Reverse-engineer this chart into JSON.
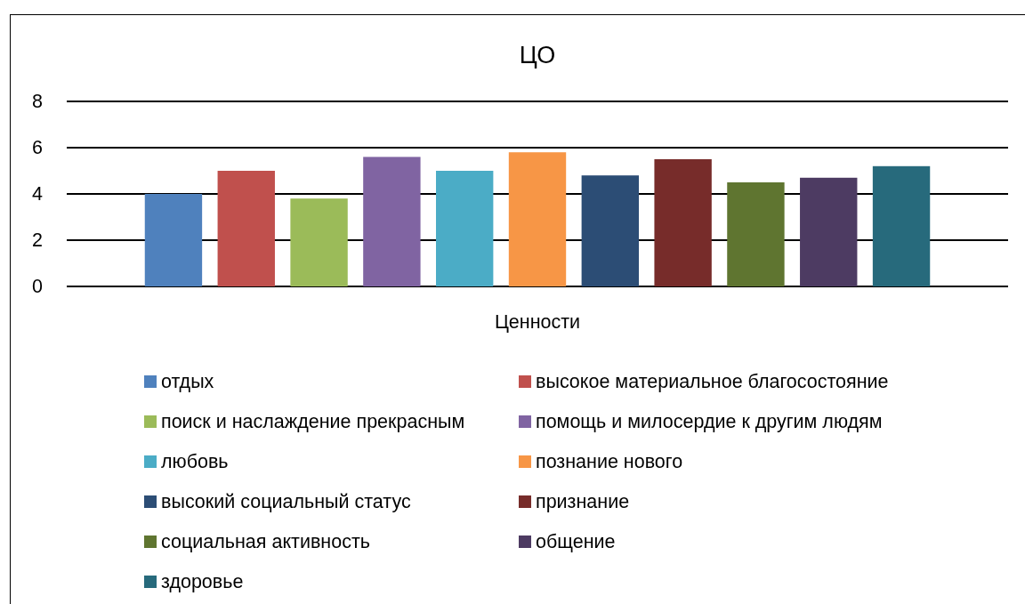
{
  "chart_data": {
    "type": "bar",
    "title": "ЦО",
    "categories": [
      "Ценности"
    ],
    "series": [
      {
        "name": "отдых",
        "color": "#4f81bd",
        "values": [
          4.0
        ]
      },
      {
        "name": "высокое материальное благосостояние",
        "color": "#c0504d",
        "values": [
          5.0
        ]
      },
      {
        "name": "поиск и наслаждение прекрасным",
        "color": "#9bbb59",
        "values": [
          3.8
        ]
      },
      {
        "name": "помощь и милосердие к другим людям",
        "color": "#8064a2",
        "values": [
          5.6
        ]
      },
      {
        "name": "любовь",
        "color": "#4bacc6",
        "values": [
          5.0
        ]
      },
      {
        "name": "познание нового",
        "color": "#f79646",
        "values": [
          5.8
        ]
      },
      {
        "name": "высокий социальный статус",
        "color": "#2c4d75",
        "values": [
          4.8
        ]
      },
      {
        "name": "признание",
        "color": "#772c2a",
        "values": [
          5.5
        ]
      },
      {
        "name": "социальная активность",
        "color": "#5f7530",
        "values": [
          4.5
        ]
      },
      {
        "name": "общение",
        "color": "#4d3b62",
        "values": [
          4.7
        ]
      },
      {
        "name": "здоровье",
        "color": "#276a7c",
        "values": [
          5.2
        ]
      }
    ],
    "ylim": [
      0,
      8
    ],
    "yticks": [
      0,
      2,
      4,
      6,
      8
    ],
    "grid": "y",
    "legend": "bottom"
  }
}
